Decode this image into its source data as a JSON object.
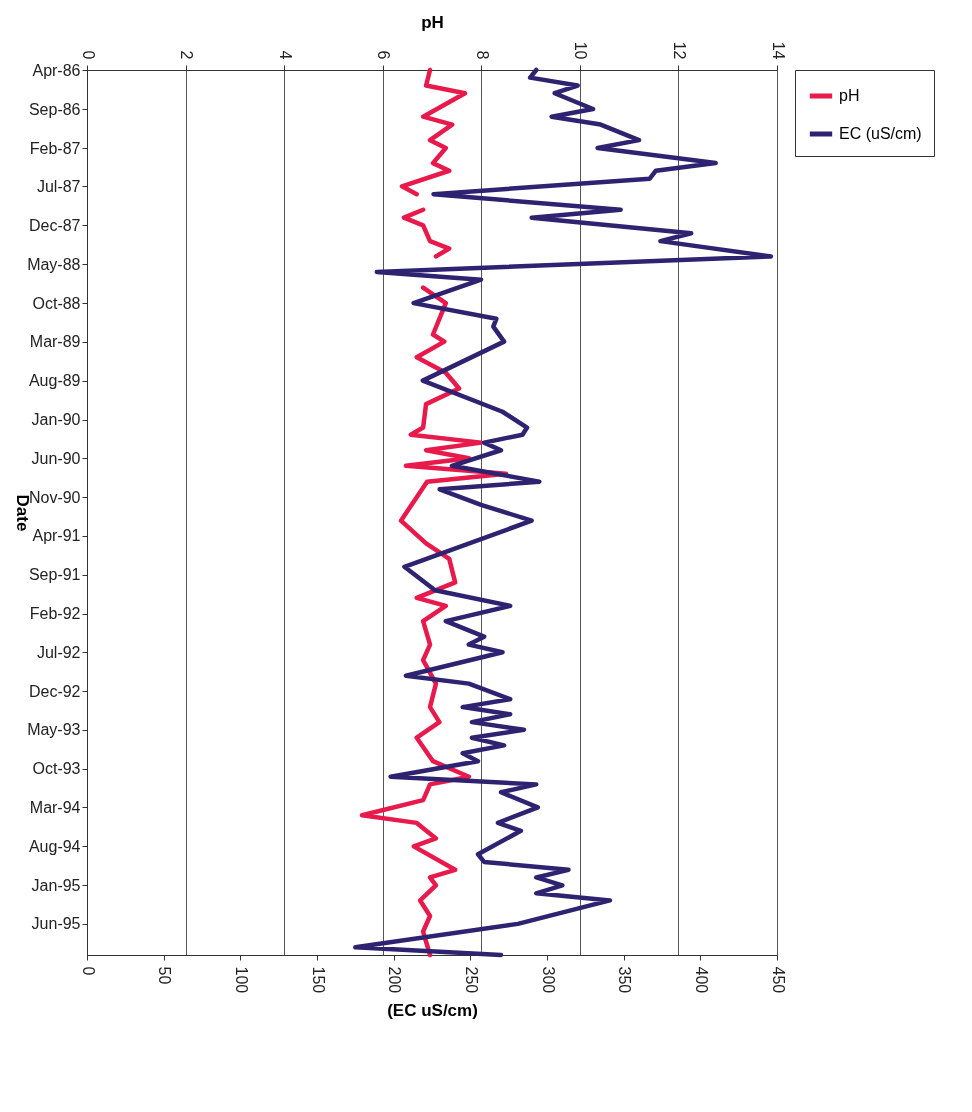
{
  "chart_data": {
    "type": "line",
    "orientation": "horizontal",
    "xlabel": "(EC uS/cm)",
    "x2label": "pH",
    "ylabel": "Date",
    "xlim": [
      0,
      450
    ],
    "xticks": [
      0,
      50,
      100,
      150,
      200,
      250,
      300,
      350,
      400,
      450
    ],
    "x2lim": [
      0,
      14
    ],
    "x2ticks": [
      0,
      2,
      4,
      6,
      8,
      10,
      12,
      14
    ],
    "yticks": [
      {
        "value": "1986-04",
        "label": "Apr-86"
      },
      {
        "value": "1986-09",
        "label": "Sep-86"
      },
      {
        "value": "1987-02",
        "label": "Feb-87"
      },
      {
        "value": "1987-07",
        "label": "Jul-87"
      },
      {
        "value": "1987-12",
        "label": "Dec-87"
      },
      {
        "value": "1988-05",
        "label": "May-88"
      },
      {
        "value": "1988-10",
        "label": "Oct-88"
      },
      {
        "value": "1989-03",
        "label": "Mar-89"
      },
      {
        "value": "1989-08",
        "label": "Aug-89"
      },
      {
        "value": "1990-01",
        "label": "Jan-90"
      },
      {
        "value": "1990-06",
        "label": "Jun-90"
      },
      {
        "value": "1990-11",
        "label": "Nov-90"
      },
      {
        "value": "1991-04",
        "label": "Apr-91"
      },
      {
        "value": "1991-09",
        "label": "Sep-91"
      },
      {
        "value": "1992-02",
        "label": "Feb-92"
      },
      {
        "value": "1992-07",
        "label": "Jul-92"
      },
      {
        "value": "1992-12",
        "label": "Dec-92"
      },
      {
        "value": "1993-05",
        "label": "May-93"
      },
      {
        "value": "1993-10",
        "label": "Oct-93"
      },
      {
        "value": "1994-03",
        "label": "Mar-94"
      },
      {
        "value": "1994-08",
        "label": "Aug-94"
      },
      {
        "value": "1995-01",
        "label": "Jan-95"
      },
      {
        "value": "1995-06",
        "label": "Jun-95"
      }
    ],
    "ylim": [
      "1995-10",
      "1986-04"
    ],
    "grid": "x",
    "legend": "right",
    "series": [
      {
        "name": "pH",
        "color": "#e8194b",
        "axis": "x2",
        "x": [
          "1986-04",
          "1986-06",
          "1986-07",
          "1986-10",
          "1986-11",
          "1987-01",
          "1987-02",
          "1987-04",
          "1987-05",
          "1987-07",
          "1987-08",
          "1987-09",
          "1987-10",
          "1987-11",
          "1987-12",
          "1988-02",
          "1988-03",
          "1988-04",
          "1988-06",
          "1988-08",
          "1988-10",
          "1989-02",
          "1989-03",
          "1989-05",
          "1989-07",
          "1989-09",
          "1989-11",
          "1990-02",
          "1990-03",
          "1990-04",
          "1990-05",
          "1990-06",
          "1990-07",
          "1990-08",
          "1990-09",
          "1990-11",
          "1991-02",
          "1991-05",
          "1991-07",
          "1991-10",
          "1991-12",
          "1992-01",
          "1992-03",
          "1992-06",
          "1992-08",
          "1992-11",
          "1993-02",
          "1993-04",
          "1993-06",
          "1993-09",
          "1993-11",
          "1993-12",
          "1994-02",
          "1994-04",
          "1994-05",
          "1994-07",
          "1994-08",
          "1994-11",
          "1994-12",
          "1995-01",
          "1995-03",
          "1995-05",
          "1995-07",
          "1995-10"
        ],
        "values": [
          6.96,
          6.88,
          7.67,
          6.82,
          7.41,
          6.96,
          7.28,
          7.02,
          7.35,
          6.39,
          6.69,
          null,
          6.82,
          6.43,
          6.82,
          6.96,
          7.35,
          7.08,
          null,
          6.82,
          7.28,
          7.02,
          7.25,
          6.69,
          7.28,
          7.55,
          6.88,
          6.82,
          6.57,
          8.0,
          6.88,
          7.75,
          6.47,
          8.5,
          6.9,
          6.69,
          6.37,
          6.88,
          7.35,
          7.47,
          6.69,
          7.28,
          6.82,
          6.96,
          6.82,
          7.08,
          6.96,
          7.15,
          6.69,
          7.02,
          7.75,
          6.96,
          6.82,
          5.58,
          6.69,
          7.08,
          6.63,
          7.47,
          6.96,
          7.08,
          6.76,
          6.96,
          6.82,
          6.96
        ]
      },
      {
        "name": "EC (uS/cm)",
        "color": "#2e2371",
        "x": [
          "1986-04",
          "1986-05",
          "1986-06",
          "1986-07",
          "1986-09",
          "1986-10",
          "1986-11",
          "1987-01",
          "1987-02",
          "1987-04",
          "1987-05",
          "1987-06",
          "1987-08",
          "1987-10",
          "1987-11",
          "1988-01",
          "1988-02",
          "1988-04",
          "1988-06",
          "1988-07",
          "1988-10",
          "1988-12",
          "1989-01",
          "1989-03",
          "1989-08",
          "1989-12",
          "1990-02",
          "1990-03",
          "1990-04",
          "1990-05",
          "1990-07",
          "1990-09",
          "1990-10",
          "1990-12",
          "1991-02",
          "1991-08",
          "1991-11",
          "1992-01",
          "1992-03",
          "1992-05",
          "1992-06",
          "1992-07",
          "1992-10",
          "1992-11",
          "1993-01",
          "1993-02",
          "1993-03",
          "1993-04",
          "1993-05",
          "1993-06",
          "1993-07",
          "1993-08",
          "1993-09",
          "1993-11",
          "1993-12",
          "1994-01",
          "1994-03",
          "1994-05",
          "1994-06",
          "1994-09",
          "1994-10",
          "1994-11",
          "1994-12",
          "1995-01",
          "1995-02",
          "1995-03",
          "1995-06",
          "1995-09",
          "1995-10"
        ],
        "values": [
          293,
          289,
          320,
          305,
          330,
          303,
          335,
          360,
          333,
          410,
          371,
          367,
          226,
          348,
          290,
          394,
          374,
          446,
          189,
          257,
          213,
          267,
          265,
          272,
          219,
          271,
          287,
          284,
          259,
          270,
          238,
          295,
          230,
          257,
          290,
          207,
          227,
          276,
          234,
          259,
          249,
          271,
          208,
          249,
          276,
          245,
          276,
          251,
          285,
          251,
          272,
          245,
          255,
          198,
          293,
          270,
          294,
          268,
          283,
          255,
          259,
          314,
          293,
          310,
          293,
          341,
          281,
          175,
          270
        ]
      }
    ]
  }
}
